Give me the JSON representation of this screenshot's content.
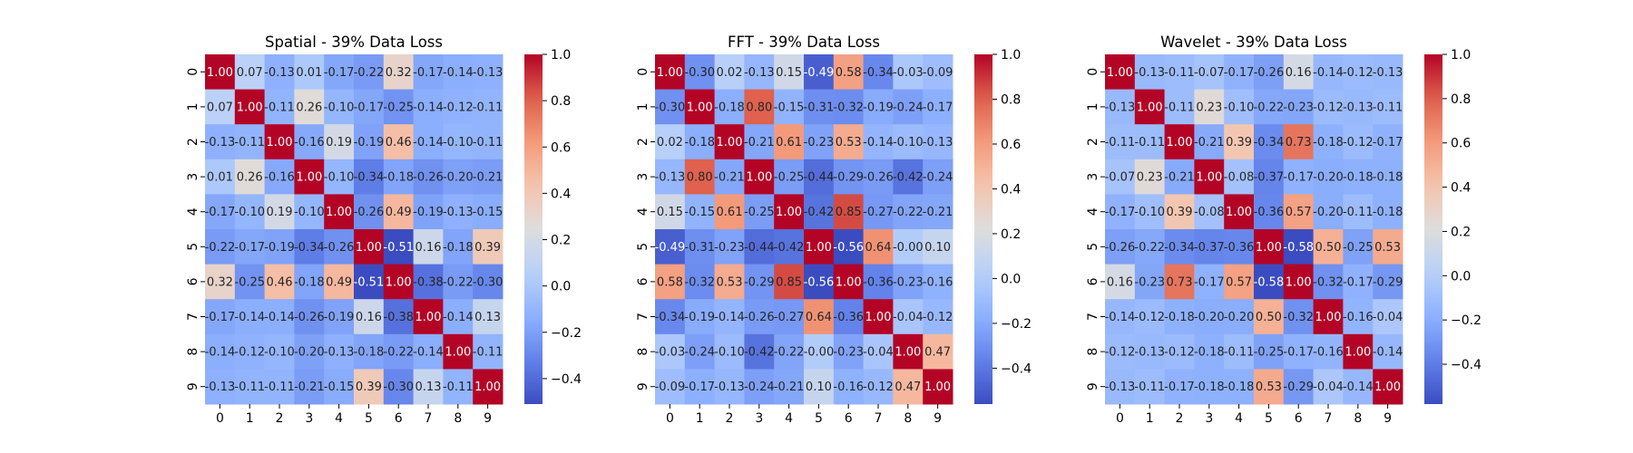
{
  "figure": {
    "background": "#ffffff",
    "colormap": "coolwarm"
  },
  "chart_data": [
    {
      "type": "heatmap",
      "title": "Spatial - 39% Data Loss",
      "x": [
        "0",
        "1",
        "2",
        "3",
        "4",
        "5",
        "6",
        "7",
        "8",
        "9"
      ],
      "y": [
        "0",
        "1",
        "2",
        "3",
        "4",
        "5",
        "6",
        "7",
        "8",
        "9"
      ],
      "values": [
        [
          1.0,
          0.07,
          -0.13,
          0.01,
          -0.17,
          -0.22,
          0.32,
          -0.17,
          -0.14,
          -0.13
        ],
        [
          0.07,
          1.0,
          -0.11,
          0.26,
          -0.1,
          -0.17,
          -0.25,
          -0.14,
          -0.12,
          -0.11
        ],
        [
          -0.13,
          -0.11,
          1.0,
          -0.16,
          0.19,
          -0.19,
          0.46,
          -0.14,
          -0.1,
          -0.11
        ],
        [
          0.01,
          0.26,
          -0.16,
          1.0,
          -0.1,
          -0.34,
          -0.18,
          -0.26,
          -0.2,
          -0.21
        ],
        [
          -0.17,
          -0.1,
          0.19,
          -0.1,
          1.0,
          -0.26,
          0.49,
          -0.19,
          -0.13,
          -0.15
        ],
        [
          -0.22,
          -0.17,
          -0.19,
          -0.34,
          -0.26,
          1.0,
          -0.51,
          0.16,
          -0.18,
          0.39
        ],
        [
          0.32,
          -0.25,
          0.46,
          -0.18,
          0.49,
          -0.51,
          1.0,
          -0.38,
          -0.22,
          -0.3
        ],
        [
          -0.17,
          -0.14,
          -0.14,
          -0.26,
          -0.19,
          0.16,
          -0.38,
          1.0,
          -0.14,
          0.13
        ],
        [
          -0.14,
          -0.12,
          -0.1,
          -0.2,
          -0.13,
          -0.18,
          -0.22,
          -0.14,
          1.0,
          -0.11
        ],
        [
          -0.13,
          -0.11,
          -0.11,
          -0.21,
          -0.15,
          0.39,
          -0.3,
          0.13,
          -0.11,
          1.0
        ]
      ],
      "annotations": [
        [
          "1.00",
          "0.07",
          "-0.13",
          "0.01",
          "-0.17",
          "-0.22",
          "0.32",
          "-0.17",
          "-0.14",
          "-0.13"
        ],
        [
          "0.07",
          "1.00",
          "-0.11",
          "0.26",
          "-0.10",
          "-0.17",
          "-0.25",
          "-0.14",
          "-0.12",
          "-0.11"
        ],
        [
          "-0.13",
          "-0.11",
          "1.00",
          "-0.16",
          "0.19",
          "-0.19",
          "0.46",
          "-0.14",
          "-0.10",
          "-0.11"
        ],
        [
          "0.01",
          "0.26",
          "-0.16",
          "1.00",
          "-0.10",
          "-0.34",
          "-0.18",
          "-0.26",
          "-0.20",
          "-0.21"
        ],
        [
          "-0.17",
          "-0.10",
          "0.19",
          "-0.10",
          "1.00",
          "-0.26",
          "0.49",
          "-0.19",
          "-0.13",
          "-0.15"
        ],
        [
          "-0.22",
          "-0.17",
          "-0.19",
          "-0.34",
          "-0.26",
          "1.00",
          "-0.51",
          "0.16",
          "-0.18",
          "0.39"
        ],
        [
          "0.32",
          "-0.25",
          "0.46",
          "-0.18",
          "0.49",
          "-0.51",
          "1.00",
          "-0.38",
          "-0.22",
          "-0.30"
        ],
        [
          "-0.17",
          "-0.14",
          "-0.14",
          "-0.26",
          "-0.19",
          "0.16",
          "-0.38",
          "1.00",
          "-0.14",
          "0.13"
        ],
        [
          "-0.14",
          "-0.12",
          "-0.10",
          "-0.20",
          "-0.13",
          "-0.18",
          "-0.22",
          "-0.14",
          "1.00",
          "-0.11"
        ],
        [
          "-0.13",
          "-0.11",
          "-0.11",
          "-0.21",
          "-0.15",
          "0.39",
          "-0.30",
          "0.13",
          "-0.11",
          "1.00"
        ]
      ],
      "vmin": -0.51,
      "vmax": 1.0,
      "colorbar": {
        "ticks": [
          -0.4,
          -0.2,
          0.0,
          0.2,
          0.4,
          0.6,
          0.8,
          1.0
        ],
        "tick_labels": [
          "−0.4",
          "−0.2",
          "0.0",
          "0.2",
          "0.4",
          "0.6",
          "0.8",
          "1.0"
        ]
      }
    },
    {
      "type": "heatmap",
      "title": "FFT - 39% Data Loss",
      "x": [
        "0",
        "1",
        "2",
        "3",
        "4",
        "5",
        "6",
        "7",
        "8",
        "9"
      ],
      "y": [
        "0",
        "1",
        "2",
        "3",
        "4",
        "5",
        "6",
        "7",
        "8",
        "9"
      ],
      "values": [
        [
          1.0,
          -0.3,
          0.02,
          -0.13,
          0.15,
          -0.49,
          0.58,
          -0.34,
          -0.03,
          -0.09
        ],
        [
          -0.3,
          1.0,
          -0.18,
          0.8,
          -0.15,
          -0.31,
          -0.32,
          -0.19,
          -0.24,
          -0.17
        ],
        [
          0.02,
          -0.18,
          1.0,
          -0.21,
          0.61,
          -0.23,
          0.53,
          -0.14,
          -0.1,
          -0.13
        ],
        [
          -0.13,
          0.8,
          -0.21,
          1.0,
          -0.25,
          -0.44,
          -0.29,
          -0.26,
          -0.42,
          -0.24
        ],
        [
          0.15,
          -0.15,
          0.61,
          -0.25,
          1.0,
          -0.42,
          0.85,
          -0.27,
          -0.22,
          -0.21
        ],
        [
          -0.49,
          -0.31,
          -0.23,
          -0.44,
          -0.42,
          1.0,
          -0.56,
          0.64,
          -0.0,
          0.1
        ],
        [
          0.58,
          -0.32,
          0.53,
          -0.29,
          0.85,
          -0.56,
          1.0,
          -0.36,
          -0.23,
          -0.16
        ],
        [
          -0.34,
          -0.19,
          -0.14,
          -0.26,
          -0.27,
          0.64,
          -0.36,
          1.0,
          -0.04,
          -0.12
        ],
        [
          -0.03,
          -0.24,
          -0.1,
          -0.42,
          -0.22,
          -0.0,
          -0.23,
          -0.04,
          1.0,
          0.47
        ],
        [
          -0.09,
          -0.17,
          -0.13,
          -0.24,
          -0.21,
          0.1,
          -0.16,
          -0.12,
          0.47,
          1.0
        ]
      ],
      "annotations": [
        [
          "1.00",
          "-0.30",
          "0.02",
          "-0.13",
          "0.15",
          "-0.49",
          "0.58",
          "-0.34",
          "-0.03",
          "-0.09"
        ],
        [
          "-0.30",
          "1.00",
          "-0.18",
          "0.80",
          "-0.15",
          "-0.31",
          "-0.32",
          "-0.19",
          "-0.24",
          "-0.17"
        ],
        [
          "0.02",
          "-0.18",
          "1.00",
          "-0.21",
          "0.61",
          "-0.23",
          "0.53",
          "-0.14",
          "-0.10",
          "-0.13"
        ],
        [
          "-0.13",
          "0.80",
          "-0.21",
          "1.00",
          "-0.25",
          "-0.44",
          "-0.29",
          "-0.26",
          "-0.42",
          "-0.24"
        ],
        [
          "0.15",
          "-0.15",
          "0.61",
          "-0.25",
          "1.00",
          "-0.42",
          "0.85",
          "-0.27",
          "-0.22",
          "-0.21"
        ],
        [
          "-0.49",
          "-0.31",
          "-0.23",
          "-0.44",
          "-0.42",
          "1.00",
          "-0.56",
          "0.64",
          "-0.00",
          "0.10"
        ],
        [
          "0.58",
          "-0.32",
          "0.53",
          "-0.29",
          "0.85",
          "-0.56",
          "1.00",
          "-0.36",
          "-0.23",
          "-0.16"
        ],
        [
          "-0.34",
          "-0.19",
          "-0.14",
          "-0.26",
          "-0.27",
          "0.64",
          "-0.36",
          "1.00",
          "-0.04",
          "-0.12"
        ],
        [
          "-0.03",
          "-0.24",
          "-0.10",
          "-0.42",
          "-0.22",
          "-0.00",
          "-0.23",
          "-0.04",
          "1.00",
          "0.47"
        ],
        [
          "-0.09",
          "-0.17",
          "-0.13",
          "-0.24",
          "-0.21",
          "0.10",
          "-0.16",
          "-0.12",
          "0.47",
          "1.00"
        ]
      ],
      "vmin": -0.56,
      "vmax": 1.0,
      "colorbar": {
        "ticks": [
          -0.4,
          -0.2,
          0.0,
          0.2,
          0.4,
          0.6,
          0.8,
          1.0
        ],
        "tick_labels": [
          "−0.4",
          "−0.2",
          "0.0",
          "0.2",
          "0.4",
          "0.6",
          "0.8",
          "1.0"
        ]
      }
    },
    {
      "type": "heatmap",
      "title": "Wavelet - 39% Data Loss",
      "x": [
        "0",
        "1",
        "2",
        "3",
        "4",
        "5",
        "6",
        "7",
        "8",
        "9"
      ],
      "y": [
        "0",
        "1",
        "2",
        "3",
        "4",
        "5",
        "6",
        "7",
        "8",
        "9"
      ],
      "values": [
        [
          1.0,
          -0.13,
          -0.11,
          -0.07,
          -0.17,
          -0.26,
          0.16,
          -0.14,
          -0.12,
          -0.13
        ],
        [
          -0.13,
          1.0,
          -0.11,
          0.23,
          -0.1,
          -0.22,
          -0.23,
          -0.12,
          -0.13,
          -0.11
        ],
        [
          -0.11,
          -0.11,
          1.0,
          -0.21,
          0.39,
          -0.34,
          0.73,
          -0.18,
          -0.12,
          -0.17
        ],
        [
          -0.07,
          0.23,
          -0.21,
          1.0,
          -0.08,
          -0.37,
          -0.17,
          -0.2,
          -0.18,
          -0.18
        ],
        [
          -0.17,
          -0.1,
          0.39,
          -0.08,
          1.0,
          -0.36,
          0.57,
          -0.2,
          -0.11,
          -0.18
        ],
        [
          -0.26,
          -0.22,
          -0.34,
          -0.37,
          -0.36,
          1.0,
          -0.58,
          0.5,
          -0.25,
          0.53
        ],
        [
          0.16,
          -0.23,
          0.73,
          -0.17,
          0.57,
          -0.58,
          1.0,
          -0.32,
          -0.17,
          -0.29
        ],
        [
          -0.14,
          -0.12,
          -0.18,
          -0.2,
          -0.2,
          0.5,
          -0.32,
          1.0,
          -0.16,
          -0.04
        ],
        [
          -0.12,
          -0.13,
          -0.12,
          -0.18,
          -0.11,
          -0.25,
          -0.17,
          -0.16,
          1.0,
          -0.14
        ],
        [
          -0.13,
          -0.11,
          -0.17,
          -0.18,
          -0.18,
          0.53,
          -0.29,
          -0.04,
          -0.14,
          1.0
        ]
      ],
      "annotations": [
        [
          "1.00",
          "-0.13",
          "-0.11",
          "-0.07",
          "-0.17",
          "-0.26",
          "0.16",
          "-0.14",
          "-0.12",
          "-0.13"
        ],
        [
          "-0.13",
          "1.00",
          "-0.11",
          "0.23",
          "-0.10",
          "-0.22",
          "-0.23",
          "-0.12",
          "-0.13",
          "-0.11"
        ],
        [
          "-0.11",
          "-0.11",
          "1.00",
          "-0.21",
          "0.39",
          "-0.34",
          "0.73",
          "-0.18",
          "-0.12",
          "-0.17"
        ],
        [
          "-0.07",
          "0.23",
          "-0.21",
          "1.00",
          "-0.08",
          "-0.37",
          "-0.17",
          "-0.20",
          "-0.18",
          "-0.18"
        ],
        [
          "-0.17",
          "-0.10",
          "0.39",
          "-0.08",
          "1.00",
          "-0.36",
          "0.57",
          "-0.20",
          "-0.11",
          "-0.18"
        ],
        [
          "-0.26",
          "-0.22",
          "-0.34",
          "-0.37",
          "-0.36",
          "1.00",
          "-0.58",
          "0.50",
          "-0.25",
          "0.53"
        ],
        [
          "0.16",
          "-0.23",
          "0.73",
          "-0.17",
          "0.57",
          "-0.58",
          "1.00",
          "-0.32",
          "-0.17",
          "-0.29"
        ],
        [
          "-0.14",
          "-0.12",
          "-0.18",
          "-0.20",
          "-0.20",
          "0.50",
          "-0.32",
          "1.00",
          "-0.16",
          "-0.04"
        ],
        [
          "-0.12",
          "-0.13",
          "-0.12",
          "-0.18",
          "-0.11",
          "-0.25",
          "-0.17",
          "-0.16",
          "1.00",
          "-0.14"
        ],
        [
          "-0.13",
          "-0.11",
          "-0.17",
          "-0.18",
          "-0.18",
          "0.53",
          "-0.29",
          "-0.04",
          "-0.14",
          "1.00"
        ]
      ],
      "vmin": -0.58,
      "vmax": 1.0,
      "colorbar": {
        "ticks": [
          -0.4,
          -0.2,
          0.0,
          0.2,
          0.4,
          0.6,
          0.8,
          1.0
        ],
        "tick_labels": [
          "−0.4",
          "−0.2",
          "0.0",
          "0.2",
          "0.4",
          "0.6",
          "0.8",
          "1.0"
        ]
      }
    }
  ]
}
